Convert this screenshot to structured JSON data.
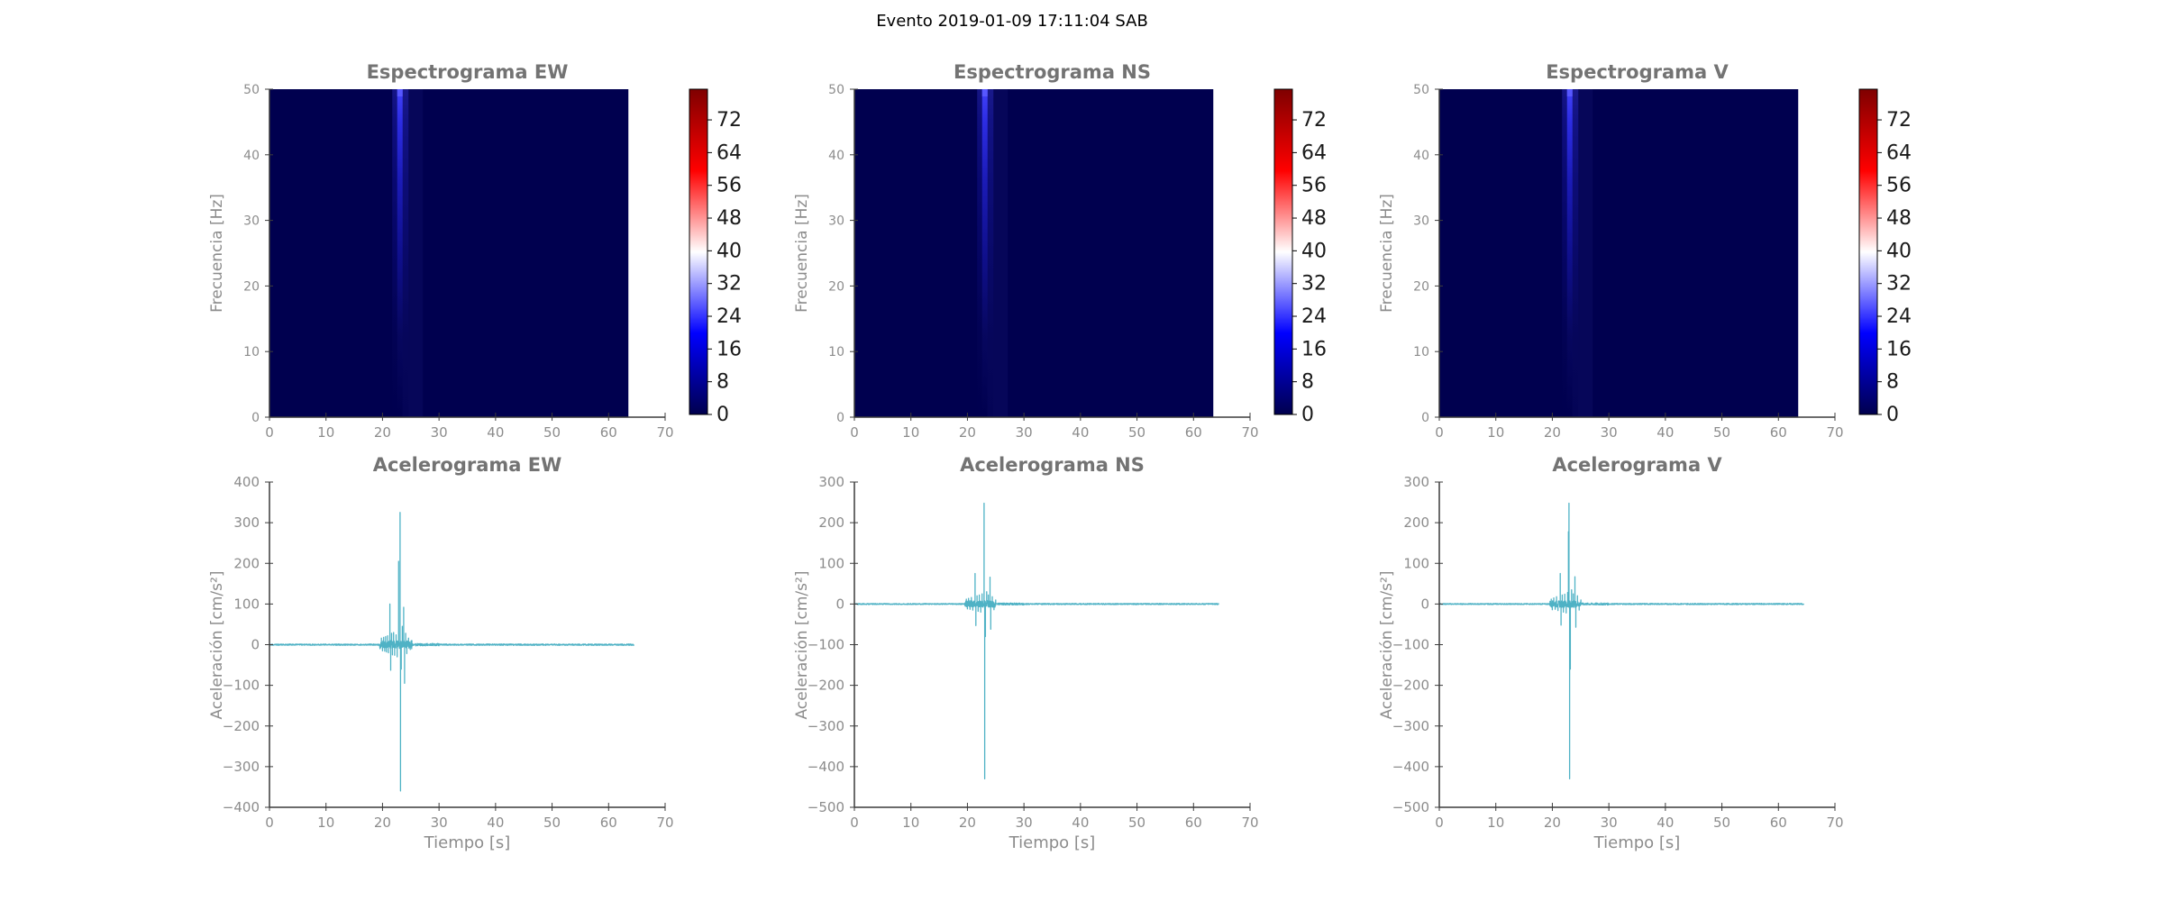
{
  "figure": {
    "title": "Evento 2019-01-09 17:11:04 SAB"
  },
  "style": {
    "trace_color": "#4fb2c5",
    "spine_color": "#3c3c3c",
    "tick_label_color": "#8c8c8c",
    "title_color": "#737373",
    "colorbar_label_color": "#1a1a1a",
    "spectrogram_bg": "#00004f",
    "streak_top_color": "#4444ff",
    "colormap": "seismic"
  },
  "chart_data": [
    {
      "type": "heatmap",
      "title": "Espectrograma EW",
      "ylabel": "Frecuencia [Hz]",
      "xlim": [
        0,
        70
      ],
      "ylim": [
        0,
        50
      ],
      "xticks": [
        0,
        10,
        20,
        30,
        40,
        50,
        60,
        70
      ],
      "yticks": [
        0,
        10,
        20,
        30,
        40,
        50
      ],
      "data_t_end": 63.5,
      "event_t": 23,
      "streak": {
        "f_top": 50,
        "fades_below_f": 18
      },
      "colorbar": {
        "vmin": 0,
        "vmax": 79.5,
        "ticks": [
          0,
          8,
          16,
          24,
          32,
          40,
          48,
          56,
          64,
          72
        ]
      }
    },
    {
      "type": "heatmap",
      "title": "Espectrograma NS",
      "ylabel": "Frecuencia [Hz]",
      "xlim": [
        0,
        70
      ],
      "ylim": [
        0,
        50
      ],
      "xticks": [
        0,
        10,
        20,
        30,
        40,
        50,
        60,
        70
      ],
      "yticks": [
        0,
        10,
        20,
        30,
        40,
        50
      ],
      "data_t_end": 63.5,
      "event_t": 23,
      "streak": {
        "f_top": 50,
        "fades_below_f": 18
      },
      "colorbar": {
        "vmin": 0,
        "vmax": 79.5,
        "ticks": [
          0,
          8,
          16,
          24,
          32,
          40,
          48,
          56,
          64,
          72
        ]
      }
    },
    {
      "type": "heatmap",
      "title": "Espectrograma V",
      "ylabel": "Frecuencia [Hz]",
      "xlim": [
        0,
        70
      ],
      "ylim": [
        0,
        50
      ],
      "xticks": [
        0,
        10,
        20,
        30,
        40,
        50,
        60,
        70
      ],
      "yticks": [
        0,
        10,
        20,
        30,
        40,
        50
      ],
      "data_t_end": 63.5,
      "event_t": 23,
      "streak": {
        "f_top": 50,
        "fades_below_f": 18
      },
      "colorbar": {
        "vmin": 0,
        "vmax": 79.5,
        "ticks": [
          0,
          8,
          16,
          24,
          32,
          40,
          48,
          56,
          64,
          72
        ]
      }
    },
    {
      "type": "line",
      "title": "Acelerograma EW",
      "xlabel": "Tiempo [s]",
      "ylabel": "Aceleración [cm/s²]",
      "xlim": [
        0,
        70
      ],
      "ylim": [
        -400,
        400
      ],
      "xticks": [
        0,
        10,
        20,
        30,
        40,
        50,
        60,
        70
      ],
      "yticks": [
        -400,
        -300,
        -200,
        -100,
        0,
        100,
        200,
        300,
        400
      ],
      "trace_end_t": 64.5,
      "peak_positive": 325,
      "peak_negative": -360,
      "peak_time_s": 23.1,
      "noise_segments": [
        {
          "t0": 0,
          "t1": 19.5,
          "amp": 1.5
        },
        {
          "t0": 19.5,
          "t1": 25.3,
          "amp": 10
        },
        {
          "t0": 25.3,
          "t1": 30,
          "amp": 3
        },
        {
          "t0": 30,
          "t1": 64.5,
          "amp": 1.6
        }
      ],
      "spikes": [
        [
          19.8,
          16
        ],
        [
          20.0,
          -15
        ],
        [
          20.2,
          18
        ],
        [
          20.4,
          -16
        ],
        [
          20.55,
          20
        ],
        [
          20.7,
          -18
        ],
        [
          20.9,
          22
        ],
        [
          21.05,
          -20
        ],
        [
          21.3,
          100
        ],
        [
          21.45,
          -63
        ],
        [
          21.6,
          28
        ],
        [
          21.75,
          -25
        ],
        [
          21.95,
          30
        ],
        [
          22.15,
          -26
        ],
        [
          22.4,
          24
        ],
        [
          22.6,
          -30
        ],
        [
          22.85,
          205
        ],
        [
          23.1,
          325
        ],
        [
          23.18,
          -360
        ],
        [
          23.32,
          -60
        ],
        [
          23.5,
          45
        ],
        [
          23.75,
          92
        ],
        [
          23.9,
          -95
        ],
        [
          24.1,
          28
        ],
        [
          24.3,
          -22
        ],
        [
          24.6,
          16
        ],
        [
          24.9,
          -12
        ],
        [
          25.2,
          10
        ]
      ]
    },
    {
      "type": "line",
      "title": "Acelerograma NS",
      "xlabel": "Tiempo [s]",
      "ylabel": "Aceleración [cm/s²]",
      "xlim": [
        0,
        70
      ],
      "ylim": [
        -500,
        300
      ],
      "xticks": [
        0,
        10,
        20,
        30,
        40,
        50,
        60,
        70
      ],
      "yticks": [
        -500,
        -400,
        -300,
        -200,
        -100,
        0,
        100,
        200,
        300
      ],
      "trace_end_t": 64.5,
      "peak_positive": 248,
      "peak_negative": -430,
      "peak_time_s": 23.0,
      "noise_segments": [
        {
          "t0": 0,
          "t1": 19.5,
          "amp": 1.2
        },
        {
          "t0": 19.5,
          "t1": 25.0,
          "amp": 8
        },
        {
          "t0": 25.0,
          "t1": 30,
          "amp": 2.5
        },
        {
          "t0": 30,
          "t1": 64.5,
          "amp": 1.4
        }
      ],
      "spikes": [
        [
          19.8,
          12
        ],
        [
          20.0,
          -12
        ],
        [
          20.2,
          14
        ],
        [
          20.45,
          -13
        ],
        [
          20.7,
          16
        ],
        [
          20.95,
          -15
        ],
        [
          21.35,
          75
        ],
        [
          21.5,
          -53
        ],
        [
          21.7,
          20
        ],
        [
          21.9,
          -18
        ],
        [
          22.1,
          22
        ],
        [
          22.35,
          -20
        ],
        [
          22.6,
          25
        ],
        [
          22.95,
          248
        ],
        [
          23.05,
          -430
        ],
        [
          23.18,
          -80
        ],
        [
          23.4,
          30
        ],
        [
          23.7,
          22
        ],
        [
          24.0,
          66
        ],
        [
          24.12,
          -62
        ],
        [
          24.4,
          18
        ],
        [
          24.7,
          -14
        ],
        [
          25.0,
          10
        ]
      ]
    },
    {
      "type": "line",
      "title": "Acelerograma V",
      "xlabel": "Tiempo [s]",
      "ylabel": "Aceleración [cm/s²]",
      "xlim": [
        0,
        70
      ],
      "ylim": [
        -500,
        300
      ],
      "xticks": [
        0,
        10,
        20,
        30,
        40,
        50,
        60,
        70
      ],
      "yticks": [
        -500,
        -400,
        -300,
        -200,
        -100,
        0,
        100,
        200,
        300
      ],
      "trace_end_t": 64.5,
      "peak_positive": 248,
      "peak_negative": -430,
      "peak_time_s": 23.0,
      "noise_segments": [
        {
          "t0": 0,
          "t1": 19.5,
          "amp": 1.2
        },
        {
          "t0": 19.5,
          "t1": 25.0,
          "amp": 8
        },
        {
          "t0": 25.0,
          "t1": 30,
          "amp": 2.5
        },
        {
          "t0": 30,
          "t1": 64.5,
          "amp": 1.4
        }
      ],
      "spikes": [
        [
          19.8,
          12
        ],
        [
          20.0,
          -14
        ],
        [
          20.25,
          15
        ],
        [
          20.5,
          -13
        ],
        [
          20.75,
          18
        ],
        [
          21.0,
          -16
        ],
        [
          21.4,
          75
        ],
        [
          21.55,
          -52
        ],
        [
          21.75,
          22
        ],
        [
          21.95,
          -20
        ],
        [
          22.2,
          24
        ],
        [
          22.45,
          -22
        ],
        [
          22.7,
          28
        ],
        [
          22.85,
          178
        ],
        [
          22.95,
          248
        ],
        [
          23.05,
          -430
        ],
        [
          23.18,
          -160
        ],
        [
          23.4,
          35
        ],
        [
          23.7,
          25
        ],
        [
          24.0,
          67
        ],
        [
          24.15,
          -57
        ],
        [
          24.45,
          20
        ],
        [
          24.75,
          -15
        ],
        [
          25.05,
          10
        ]
      ]
    }
  ]
}
